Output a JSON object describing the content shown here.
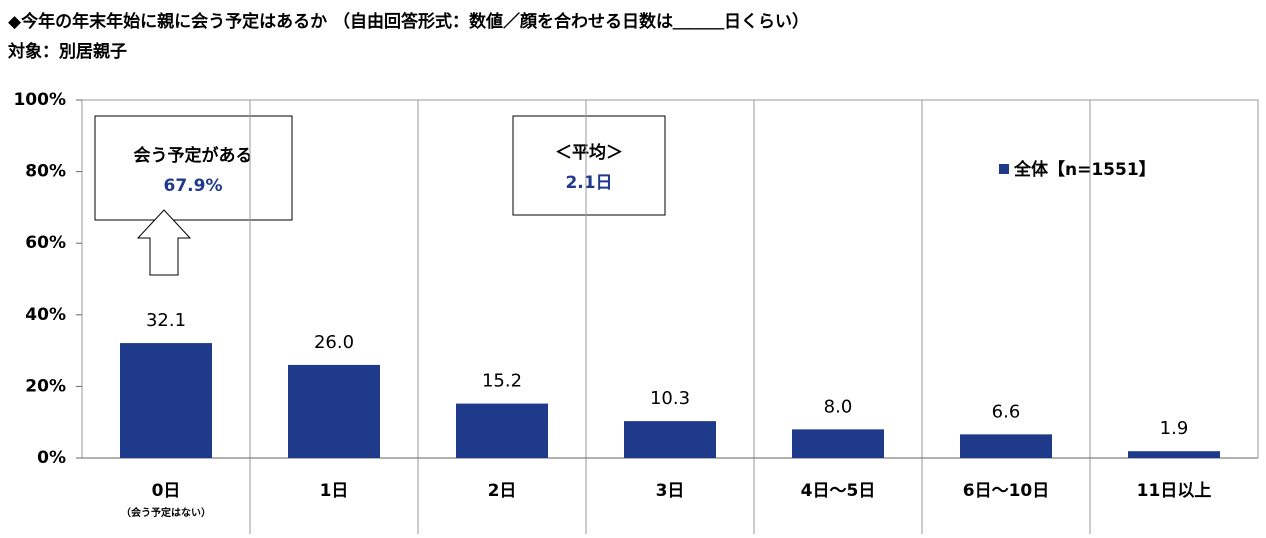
{
  "chart_data": {
    "type": "bar",
    "title": "◆今年の年末年始に親に会う予定はあるか （自由回答形式：数値／顔を合わせる日数は＿＿＿日くらい）",
    "subtitle": "対象：別居親子",
    "categories": [
      "0日",
      "1日",
      "2日",
      "3日",
      "4日～5日",
      "6日～10日",
      "11日以上"
    ],
    "category_note": "（会う予定はない）",
    "series": [
      {
        "name": "全体【n=1551】",
        "color": "#1f3a8a",
        "values": [
          32.1,
          26.0,
          15.2,
          10.3,
          8.0,
          6.6,
          1.9
        ],
        "value_labels": [
          "32.1",
          "26.0",
          "15.2",
          "10.3",
          "8.0",
          "6.6",
          "1.9"
        ]
      }
    ],
    "ylim": [
      0,
      100
    ],
    "yticks": [
      {
        "value": 0,
        "label": "0%"
      },
      {
        "value": 20,
        "label": "20%"
      },
      {
        "value": 40,
        "label": "40%"
      },
      {
        "value": 60,
        "label": "60%"
      },
      {
        "value": 80,
        "label": "80%"
      },
      {
        "value": 100,
        "label": "100%"
      }
    ],
    "annotations": [
      {
        "title": "会う予定がある",
        "text": "67.9%"
      },
      {
        "title": "＜平均＞",
        "text": "2.1日"
      }
    ]
  }
}
